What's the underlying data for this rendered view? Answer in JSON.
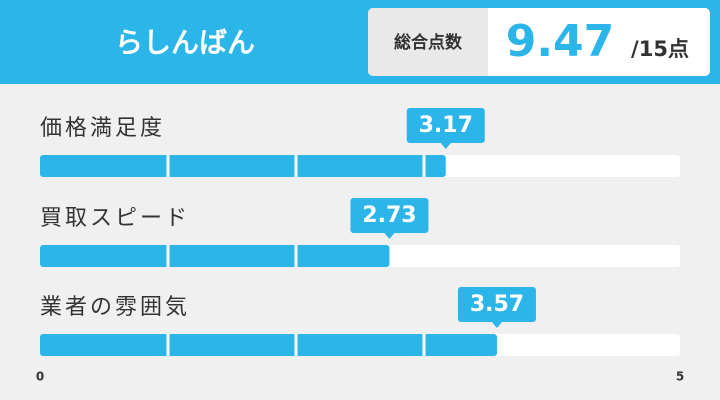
{
  "chart_data": {
    "type": "bar",
    "orientation": "horizontal",
    "title": "らしんばん",
    "total_label": "総合点数",
    "total_score": 9.47,
    "total_max": "/15点",
    "categories": [
      "価格満足度",
      "買取スピード",
      "業者の雰囲気"
    ],
    "values": [
      3.17,
      2.73,
      3.57
    ],
    "color": "#2cb5e9",
    "xlim": [
      0,
      5
    ],
    "xticks": [
      0,
      5
    ]
  }
}
